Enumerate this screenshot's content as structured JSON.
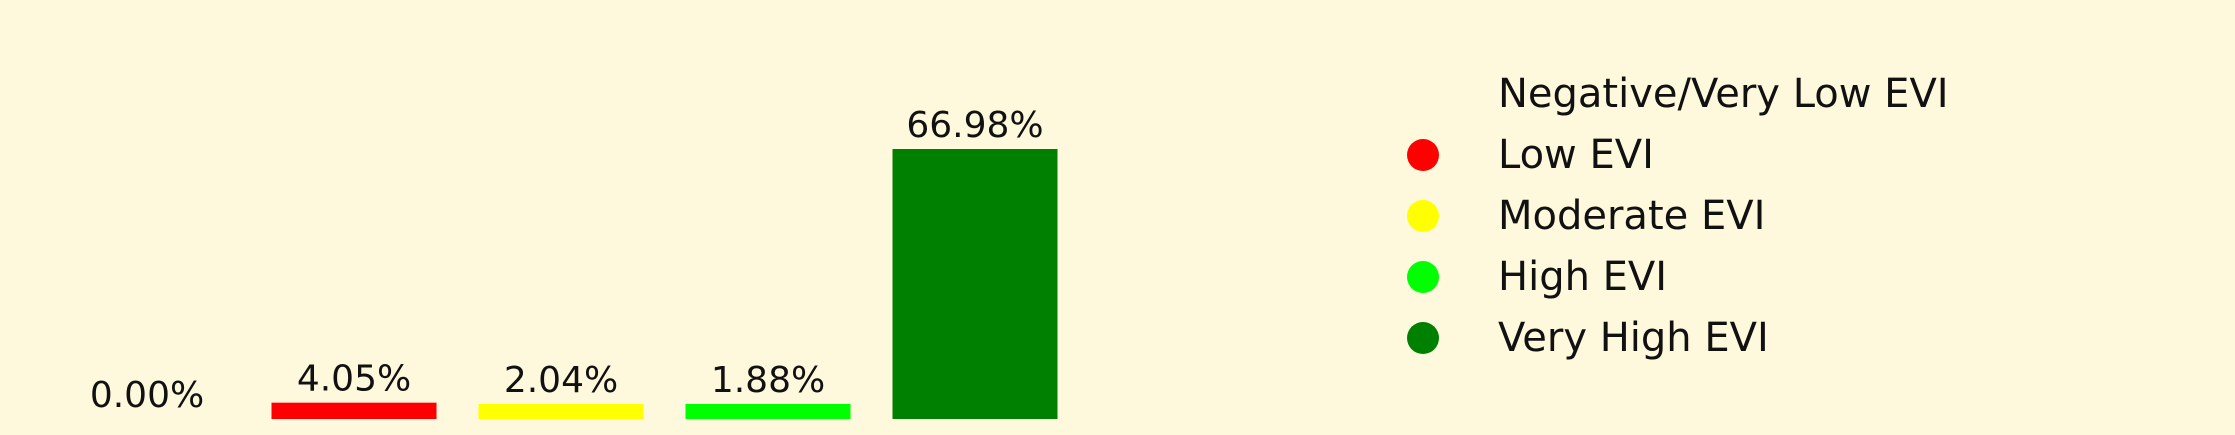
{
  "chart_data": {
    "type": "bar",
    "categories": [
      "Negative/Very Low EVI",
      "Low EVI",
      "Moderate EVI",
      "High EVI",
      "Very High EVI"
    ],
    "values": [
      0.0,
      4.05,
      2.04,
      1.88,
      66.98
    ],
    "value_labels": [
      "0.00%",
      "4.05%",
      "2.04%",
      "1.88%",
      "66.98%"
    ],
    "colors": [
      "#fef8dc",
      "#ff0000",
      "#ffff00",
      "#00ff00",
      "#008000"
    ],
    "unit": "%",
    "ylim": [
      0,
      66.98
    ],
    "grid": false,
    "axes_visible": false,
    "legend": {
      "placement": "right",
      "entries": [
        {
          "label": "Negative/Very Low EVI",
          "color": "#fef8dc"
        },
        {
          "label": "Low EVI",
          "color": "#ff0000"
        },
        {
          "label": "Moderate EVI",
          "color": "#ffff00"
        },
        {
          "label": "High EVI",
          "color": "#00ff00"
        },
        {
          "label": "Very High EVI",
          "color": "#008000"
        }
      ]
    }
  }
}
